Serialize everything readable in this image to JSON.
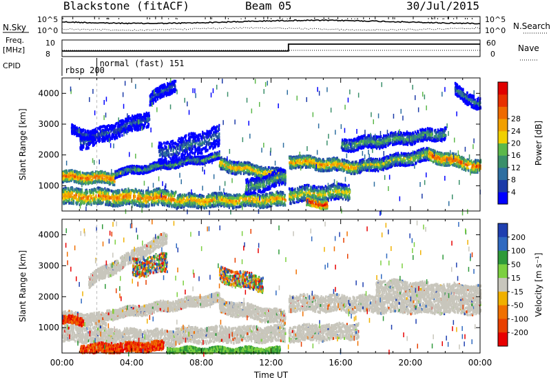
{
  "header": {
    "station": "Blackstone (fitACF)",
    "beam": "Beam 05",
    "date": "30/Jul/2015"
  },
  "summary_panel": {
    "left_labels": {
      "nsky": "N.Sky",
      "freq": "Freq.",
      "freq_unit": "[MHz]",
      "cpid": "CPID"
    },
    "right_labels": {
      "nsearch": "N.Search",
      "nave": "Nave"
    },
    "noise_ticks": [
      "10^5",
      "10^0"
    ],
    "freq_ticks": [
      "10",
      "8"
    ],
    "nave_ticks": [
      "60",
      "0"
    ],
    "cpid_entries": [
      {
        "label": "rbsp 200",
        "start_hour": 0.0
      },
      {
        "label": "normal (fast) 151",
        "start_hour": 2.0
      }
    ],
    "nave_change_hour": 13.0
  },
  "chart_data": [
    {
      "type": "heatmap",
      "name": "power",
      "xlabel": "",
      "ylabel": "Slant Range [km]",
      "x_range_hours": [
        0,
        24
      ],
      "ylim": [
        180,
        4500
      ],
      "yticks": [
        "1000",
        "2000",
        "3000",
        "4000"
      ],
      "colorbar_label": "Power [dB]",
      "colorbar_ticks": [
        "4",
        "8",
        "12",
        "16",
        "20",
        "24",
        "28"
      ],
      "colorbar_colors": [
        "#0000ff",
        "#1b3aa8",
        "#2d6ea0",
        "#3a8f6a",
        "#5cb84a",
        "#f0d000",
        "#f2a000",
        "#ee6a00",
        "#e83000",
        "#e00000"
      ],
      "bands": [
        {
          "t0": 0.0,
          "t1": 3.0,
          "r0": 1290,
          "r1": 1240,
          "w": 180,
          "level": 0.8
        },
        {
          "t0": 3.0,
          "t1": 9.0,
          "r0": 1400,
          "r1": 1950,
          "w": 120,
          "level": 0.45
        },
        {
          "t0": 9.0,
          "t1": 12.8,
          "r0": 1700,
          "r1": 1300,
          "w": 200,
          "level": 0.65
        },
        {
          "t0": 13.0,
          "t1": 17.0,
          "r0": 1800,
          "r1": 1600,
          "w": 200,
          "level": 0.7
        },
        {
          "t0": 17.0,
          "t1": 21.0,
          "r0": 1600,
          "r1": 2000,
          "w": 200,
          "level": 0.55
        },
        {
          "t0": 21.0,
          "t1": 24.0,
          "r0": 2000,
          "r1": 1600,
          "w": 200,
          "level": 0.8
        },
        {
          "t0": 0.0,
          "t1": 6.5,
          "r0": 650,
          "r1": 600,
          "w": 260,
          "level": 0.75
        },
        {
          "t0": 6.5,
          "t1": 12.8,
          "r0": 500,
          "r1": 550,
          "w": 220,
          "level": 0.7
        },
        {
          "t0": 13.0,
          "t1": 16.5,
          "r0": 700,
          "r1": 800,
          "w": 250,
          "level": 0.6
        },
        {
          "t0": 1.0,
          "t1": 5.0,
          "r0": 2400,
          "r1": 3200,
          "w": 250,
          "level": 0.25
        },
        {
          "t0": 5.0,
          "t1": 6.5,
          "r0": 3800,
          "r1": 4300,
          "w": 200,
          "level": 0.25
        },
        {
          "t0": 5.5,
          "t1": 9.0,
          "r0": 2000,
          "r1": 2600,
          "w": 350,
          "level": 0.3
        },
        {
          "t0": 0.5,
          "t1": 2.0,
          "r0": 2800,
          "r1": 2600,
          "w": 150,
          "level": 0.2
        },
        {
          "t0": 22.5,
          "t1": 24.0,
          "r0": 4100,
          "r1": 3600,
          "w": 200,
          "level": 0.35
        },
        {
          "t0": 16.0,
          "t1": 22.0,
          "r0": 2300,
          "r1": 2700,
          "w": 200,
          "level": 0.45
        },
        {
          "t0": 10.5,
          "t1": 12.8,
          "r0": 900,
          "r1": 1300,
          "w": 250,
          "level": 0.45
        },
        {
          "t0": 14.0,
          "t1": 15.2,
          "r0": 450,
          "r1": 400,
          "w": 120,
          "level": 0.98
        }
      ]
    },
    {
      "type": "heatmap",
      "name": "velocity",
      "xlabel": "Time UT",
      "ylabel": "Slant Range [km]",
      "x_range_hours": [
        0,
        24
      ],
      "ylim": [
        180,
        4500
      ],
      "yticks": [
        "1000",
        "2000",
        "3000",
        "4000"
      ],
      "xticks": [
        "00:00",
        "04:00",
        "08:00",
        "12:00",
        "16:00",
        "20:00",
        "00:00"
      ],
      "colorbar_label": "Velocity [m s⁻¹]",
      "colorbar_ticks": [
        "200",
        "100",
        "50",
        "15",
        "-15",
        "-50",
        "-100",
        "-200"
      ],
      "colorbar_colors": [
        "#1f3fb0",
        "#2f69c0",
        "#2e9a3a",
        "#7cd040",
        "#c8c6bc",
        "#f0b000",
        "#f07000",
        "#e84000",
        "#e80000"
      ],
      "ground_scatter_color": "#c8c6bc",
      "bands": [
        {
          "t0": 0.0,
          "t1": 2.5,
          "r0": 1300,
          "r1": 1250,
          "w": 200,
          "kind": "gs"
        },
        {
          "t0": 2.5,
          "t1": 9.0,
          "r0": 1400,
          "r1": 1950,
          "w": 160,
          "kind": "gs"
        },
        {
          "t0": 9.0,
          "t1": 12.8,
          "r0": 1700,
          "r1": 1300,
          "w": 220,
          "kind": "gs"
        },
        {
          "t0": 13.0,
          "t1": 24.0,
          "r0": 1800,
          "r1": 1700,
          "w": 260,
          "kind": "gs"
        },
        {
          "t0": 0.0,
          "t1": 6.5,
          "r0": 800,
          "r1": 650,
          "w": 250,
          "kind": "gs"
        },
        {
          "t0": 6.5,
          "t1": 12.8,
          "r0": 750,
          "r1": 800,
          "w": 250,
          "kind": "gs"
        },
        {
          "t0": 13.0,
          "t1": 17.0,
          "r0": 800,
          "r1": 900,
          "w": 250,
          "kind": "gs"
        },
        {
          "t0": 18.0,
          "t1": 24.0,
          "r0": 2300,
          "r1": 2100,
          "w": 250,
          "kind": "gs"
        },
        {
          "t0": 1.5,
          "t1": 6.0,
          "r0": 2500,
          "r1": 3900,
          "w": 200,
          "kind": "gs"
        },
        {
          "t0": 1.0,
          "t1": 5.8,
          "r0": 300,
          "r1": 400,
          "w": 150,
          "kind": "neg"
        },
        {
          "t0": 6.0,
          "t1": 12.5,
          "r0": 250,
          "r1": 250,
          "w": 100,
          "kind": "pos"
        },
        {
          "t0": 0.0,
          "t1": 1.2,
          "r0": 1250,
          "r1": 1200,
          "w": 120,
          "kind": "neg"
        },
        {
          "t0": 4.0,
          "t1": 6.0,
          "r0": 2900,
          "r1": 3100,
          "w": 300,
          "kind": "mix"
        },
        {
          "t0": 9.0,
          "t1": 11.5,
          "r0": 2700,
          "r1": 2400,
          "w": 250,
          "kind": "mix"
        }
      ]
    }
  ]
}
